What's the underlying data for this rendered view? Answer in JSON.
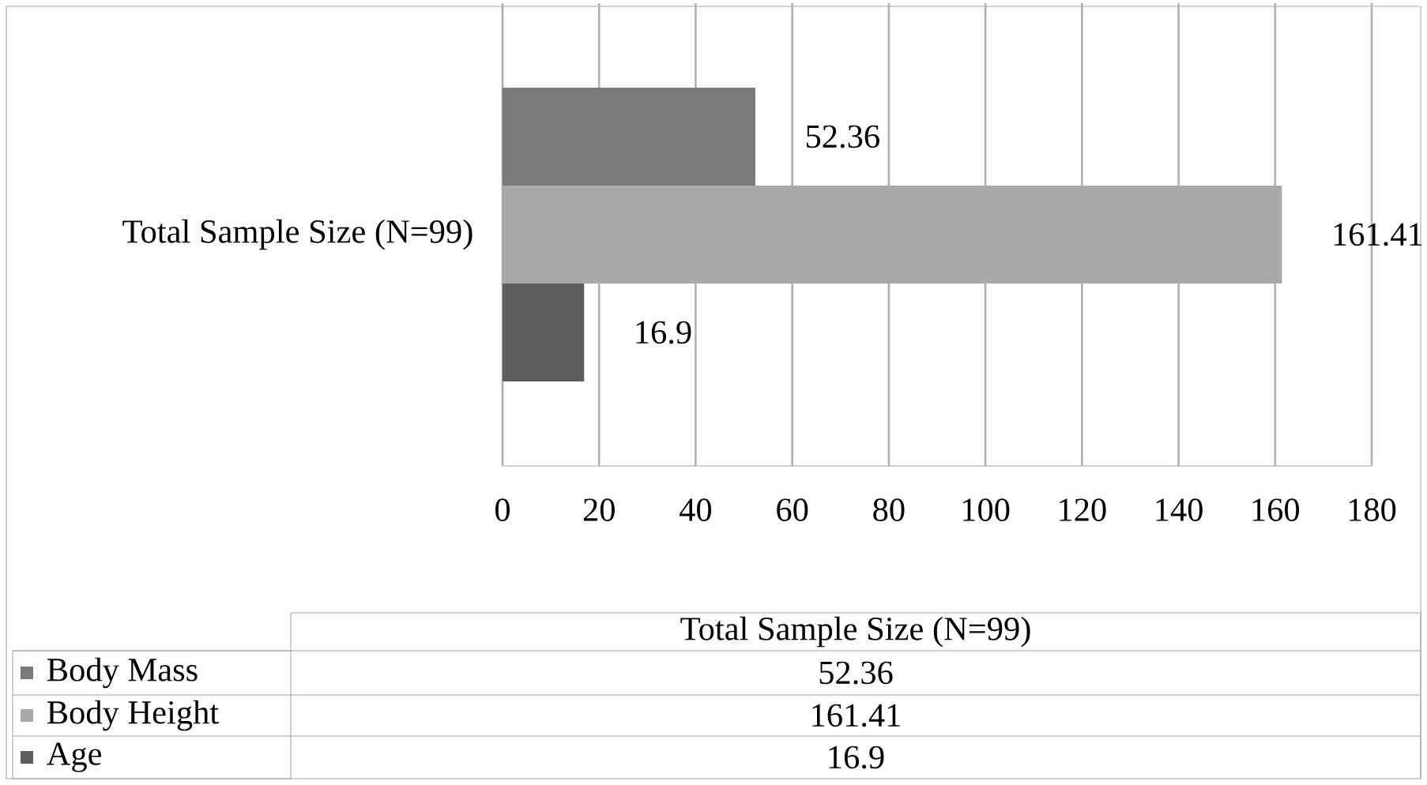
{
  "chart_data": {
    "type": "bar",
    "orientation": "horizontal",
    "categories": [
      "Total Sample Size (N=99)"
    ],
    "series": [
      {
        "name": "Body Mass",
        "color": "#7a7a7a",
        "values": [
          52.36
        ]
      },
      {
        "name": "Body Height",
        "color": "#a9a9a9",
        "values": [
          161.41
        ]
      },
      {
        "name": "Age",
        "color": "#5e5e5e",
        "values": [
          16.9
        ]
      }
    ],
    "xlim": [
      0,
      180
    ],
    "xticks": [
      0,
      20,
      40,
      60,
      80,
      100,
      120,
      140,
      160,
      180
    ],
    "grid": "x",
    "legend": "bottom",
    "data_labels": true,
    "annotations": [
      "52.36",
      "161.41",
      "16.9"
    ]
  }
}
